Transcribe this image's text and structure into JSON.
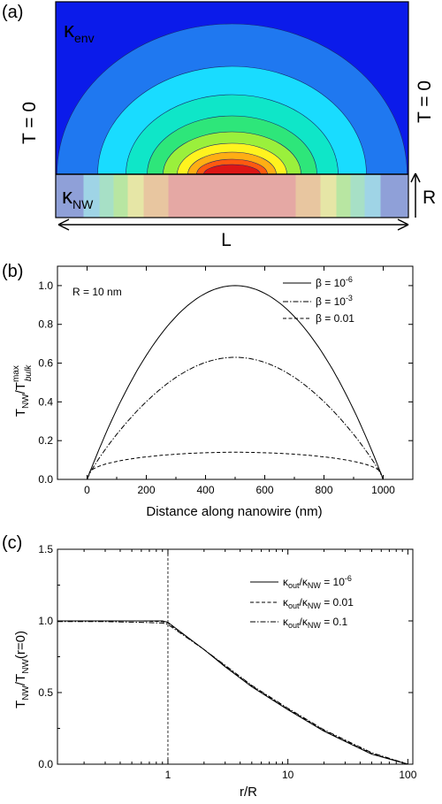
{
  "chart_data": [
    {
      "type": "heatmap",
      "panel_label": "(a)",
      "labels": {
        "kappa_env": "κ",
        "kappa_env_sub": "env",
        "kappa_nw": "κ",
        "kappa_nw_sub": "NW",
        "left_bc": "T = 0",
        "right_bc": "T = 0",
        "length": "L",
        "radius": "R"
      },
      "colors": {
        "background": "#0b1bea",
        "contours": [
          "#1f78f0",
          "#19dcff",
          "#0fe6c8",
          "#2ee67a",
          "#9af03c",
          "#fff31f",
          "#ffae14",
          "#ff5a10",
          "#dd1616"
        ],
        "wire_bands": [
          "#8fa0d8",
          "#9fd4e6",
          "#a7e0c6",
          "#b8e6a2",
          "#e6e6a6",
          "#e8c6a0",
          "#e5a8a4"
        ]
      }
    },
    {
      "type": "line",
      "panel_label": "(b)",
      "annotation": "R = 10 nm",
      "xlabel": "Distance along nanowire  (nm)",
      "ylabel": "T",
      "ylabel_sub1": "NW",
      "ylabel_mid": "/T",
      "ylabel_sup": "max",
      "ylabel_sub2": "bulk",
      "xlim": [
        -100,
        1100
      ],
      "ylim": [
        0,
        1.1
      ],
      "xticks": [
        0,
        200,
        400,
        600,
        800,
        1000
      ],
      "yticks": [
        "0.0",
        "0.2",
        "0.4",
        "0.6",
        "0.8",
        "1.0"
      ],
      "ytick_values": [
        0,
        0.2,
        0.4,
        0.6,
        0.8,
        1.0
      ],
      "legend_position": "top-right",
      "series": [
        {
          "name_pre": "β = 10",
          "name_sup": "-6",
          "peak": 1.0,
          "style": "solid"
        },
        {
          "name_pre": "β = 10",
          "name_sup": "-3",
          "peak": 0.63,
          "style": "dashdot"
        },
        {
          "name_pre": "β = 0.01",
          "name_sup": "",
          "peak": 0.14,
          "style": "dashed"
        }
      ]
    },
    {
      "type": "line",
      "panel_label": "(c)",
      "xlabel": "r/R",
      "ylabel": "T",
      "ylabel_sub1": "NW",
      "ylabel_mid": "/T",
      "ylabel_sub2": "NW",
      "ylabel_tail": "(r=0)",
      "x_scale": "log",
      "xlim": [
        0.12,
        110
      ],
      "ylim": [
        0,
        1.5
      ],
      "xticks": [
        "1",
        "10",
        "100"
      ],
      "xtick_values": [
        1,
        10,
        100
      ],
      "yticks": [
        "0.0",
        "0.5",
        "1.0",
        "1.5"
      ],
      "ytick_values": [
        0,
        0.5,
        1.0,
        1.5
      ],
      "vline_x": 1,
      "legend_position": "top-right",
      "series": [
        {
          "name_a": "κ",
          "sub_a": "out",
          "name_b": "/κ",
          "sub_b": "NW",
          "name_c": " = 10",
          "sup": "-6",
          "style": "solid",
          "x": [
            0.12,
            0.3,
            0.6,
            0.9,
            1,
            2,
            3,
            5,
            10,
            20,
            50,
            100
          ],
          "y": [
            1.0,
            1.0,
            1.0,
            1.0,
            0.99,
            0.8,
            0.68,
            0.54,
            0.38,
            0.23,
            0.07,
            0.0
          ]
        },
        {
          "name_a": "κ",
          "sub_a": "out",
          "name_b": "/κ",
          "sub_b": "NW",
          "name_c": " = 0.01",
          "sup": "",
          "style": "dashed",
          "x": [
            0.12,
            0.3,
            0.6,
            0.9,
            1,
            2,
            3,
            5,
            10,
            20,
            50,
            100
          ],
          "y": [
            1.0,
            1.0,
            1.0,
            0.995,
            0.985,
            0.8,
            0.685,
            0.545,
            0.385,
            0.235,
            0.075,
            0.0
          ]
        },
        {
          "name_a": "κ",
          "sub_a": "out",
          "name_b": "/κ",
          "sub_b": "NW",
          "name_c": " = 0.1",
          "sup": "",
          "style": "dashdot",
          "x": [
            0.12,
            0.3,
            0.6,
            0.9,
            1,
            2,
            3,
            5,
            10,
            20,
            50,
            100
          ],
          "y": [
            0.995,
            0.995,
            0.99,
            0.985,
            0.975,
            0.8,
            0.69,
            0.55,
            0.39,
            0.24,
            0.08,
            0.0
          ]
        }
      ]
    }
  ]
}
